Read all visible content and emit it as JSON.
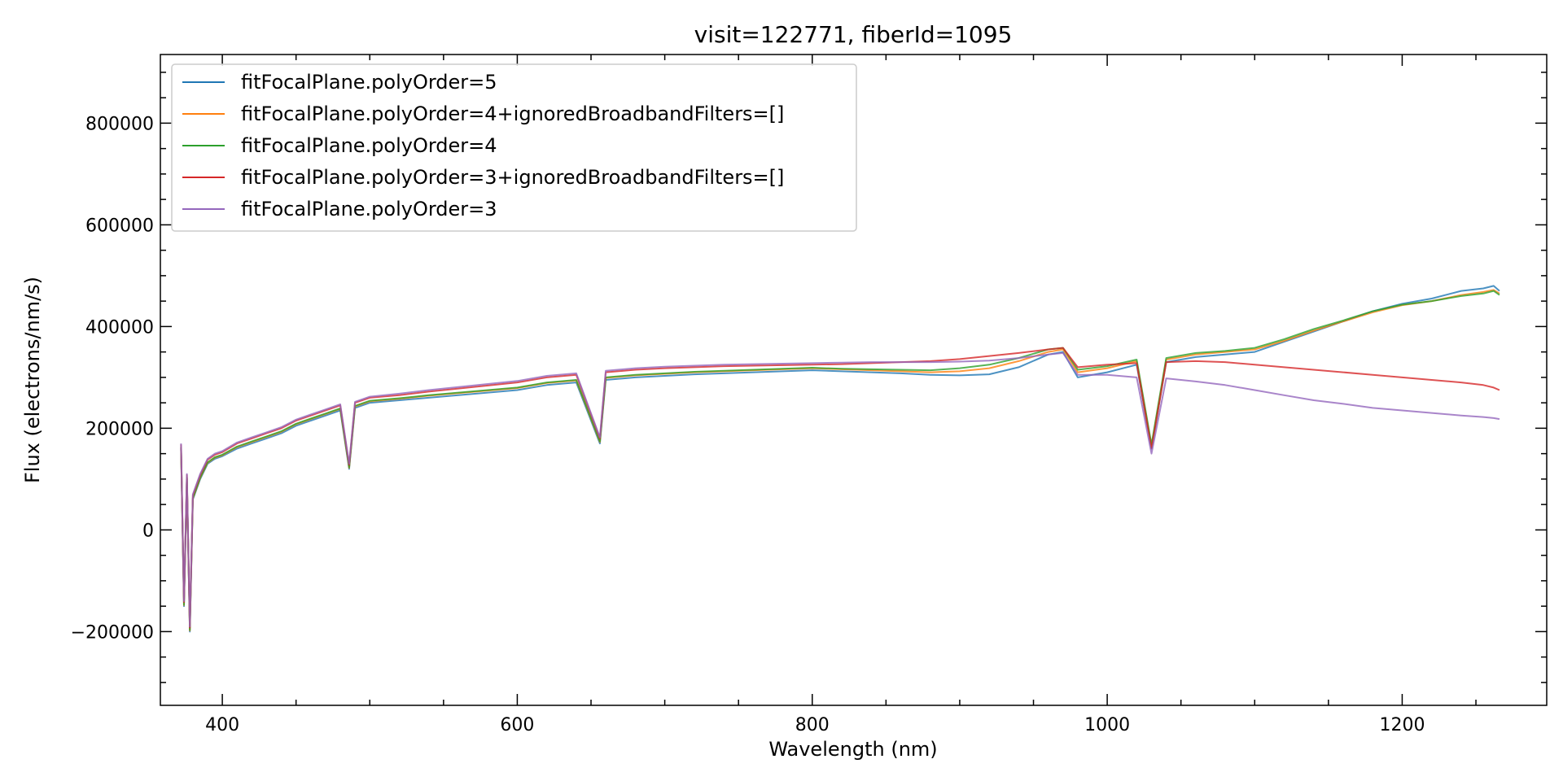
{
  "chart_data": {
    "type": "line",
    "title": "visit=122771, fiberId=1095",
    "xlabel": "Wavelength (nm)",
    "ylabel": "Flux (electrons/nm/s)",
    "xlim": [
      358,
      1298
    ],
    "ylim": [
      -345000,
      935000
    ],
    "xticks": [
      400,
      600,
      800,
      1000,
      1200
    ],
    "xtick_labels": [
      "400",
      "600",
      "800",
      "1000",
      "1200"
    ],
    "yticks": [
      -200000,
      0,
      200000,
      400000,
      600000,
      800000
    ],
    "ytick_labels": [
      "−200000",
      "0",
      "200000",
      "400000",
      "600000",
      "800000"
    ],
    "grid": false,
    "legend_position": "top-left",
    "series": [
      {
        "name": "fitFocalPlane.polyOrder=5",
        "color": "#1f77b4",
        "x": [
          372,
          374,
          376,
          378,
          380,
          385,
          390,
          395,
          400,
          410,
          420,
          430,
          440,
          450,
          460,
          470,
          480,
          486,
          490,
          500,
          520,
          540,
          560,
          580,
          600,
          620,
          640,
          656,
          660,
          680,
          700,
          720,
          740,
          760,
          780,
          800,
          820,
          840,
          860,
          880,
          900,
          920,
          940,
          960,
          970,
          980,
          1000,
          1020,
          1030,
          1040,
          1060,
          1080,
          1100,
          1120,
          1140,
          1160,
          1180,
          1200,
          1220,
          1240,
          1255,
          1262,
          1266
        ],
        "y": [
          160000,
          -150000,
          100000,
          -200000,
          60000,
          100000,
          130000,
          140000,
          145000,
          160000,
          170000,
          180000,
          190000,
          205000,
          215000,
          225000,
          235000,
          120000,
          240000,
          250000,
          255000,
          260000,
          265000,
          270000,
          275000,
          285000,
          290000,
          170000,
          295000,
          300000,
          303000,
          306000,
          308000,
          310000,
          312000,
          314000,
          312000,
          310000,
          308000,
          305000,
          304000,
          306000,
          320000,
          345000,
          350000,
          300000,
          310000,
          325000,
          160000,
          330000,
          340000,
          345000,
          350000,
          370000,
          390000,
          410000,
          430000,
          445000,
          455000,
          470000,
          475000,
          480000,
          470000
        ]
      },
      {
        "name": "fitFocalPlane.polyOrder=4+ignoredBroadbandFilters=[]",
        "color": "#ff7f0e",
        "x": [
          372,
          374,
          376,
          378,
          380,
          385,
          390,
          395,
          400,
          410,
          420,
          430,
          440,
          450,
          460,
          470,
          480,
          486,
          490,
          500,
          520,
          540,
          560,
          580,
          600,
          620,
          640,
          656,
          660,
          680,
          700,
          720,
          740,
          760,
          780,
          800,
          820,
          840,
          860,
          880,
          900,
          920,
          940,
          960,
          970,
          980,
          1000,
          1020,
          1030,
          1040,
          1060,
          1080,
          1100,
          1120,
          1140,
          1160,
          1180,
          1200,
          1220,
          1240,
          1255,
          1262,
          1266
        ],
        "y": [
          162000,
          -148000,
          102000,
          -198000,
          62000,
          102000,
          132000,
          142000,
          147000,
          163000,
          173000,
          183000,
          193000,
          208000,
          218000,
          228000,
          238000,
          122000,
          243000,
          253000,
          258000,
          264000,
          269000,
          274000,
          279000,
          289000,
          294000,
          173000,
          299000,
          304000,
          307000,
          310000,
          312000,
          314000,
          316000,
          318000,
          316000,
          314000,
          312000,
          310000,
          312000,
          318000,
          332000,
          350000,
          355000,
          310000,
          318000,
          332000,
          165000,
          335000,
          345000,
          350000,
          355000,
          372000,
          392000,
          410000,
          428000,
          442000,
          450000,
          462000,
          468000,
          472000,
          465000
        ]
      },
      {
        "name": "fitFocalPlane.polyOrder=4",
        "color": "#2ca02c",
        "x": [
          372,
          374,
          376,
          378,
          380,
          385,
          390,
          395,
          400,
          410,
          420,
          430,
          440,
          450,
          460,
          470,
          480,
          486,
          490,
          500,
          520,
          540,
          560,
          580,
          600,
          620,
          640,
          656,
          660,
          680,
          700,
          720,
          740,
          760,
          780,
          800,
          820,
          840,
          860,
          880,
          900,
          920,
          940,
          960,
          970,
          980,
          1000,
          1020,
          1030,
          1040,
          1060,
          1080,
          1100,
          1120,
          1140,
          1160,
          1180,
          1200,
          1220,
          1240,
          1255,
          1262,
          1266
        ],
        "y": [
          163000,
          -147000,
          103000,
          -197000,
          63000,
          103000,
          133000,
          143000,
          148000,
          164000,
          174000,
          184000,
          194000,
          209000,
          219000,
          229000,
          239000,
          123000,
          244000,
          254000,
          259000,
          265000,
          270000,
          275000,
          280000,
          290000,
          295000,
          174000,
          300000,
          305000,
          308000,
          311000,
          313000,
          315000,
          317000,
          319000,
          317000,
          316000,
          315000,
          314000,
          318000,
          325000,
          338000,
          355000,
          358000,
          315000,
          322000,
          335000,
          168000,
          338000,
          348000,
          352000,
          358000,
          375000,
          395000,
          412000,
          430000,
          443000,
          450000,
          460000,
          465000,
          470000,
          462000
        ]
      },
      {
        "name": "fitFocalPlane.polyOrder=3+ignoredBroadbandFilters=[]",
        "color": "#d62728",
        "x": [
          372,
          374,
          376,
          378,
          380,
          385,
          390,
          395,
          400,
          410,
          420,
          430,
          440,
          450,
          460,
          470,
          480,
          486,
          490,
          500,
          520,
          540,
          560,
          580,
          600,
          620,
          640,
          656,
          660,
          680,
          700,
          720,
          740,
          760,
          780,
          800,
          820,
          840,
          860,
          880,
          900,
          920,
          940,
          960,
          970,
          980,
          1000,
          1020,
          1030,
          1040,
          1060,
          1080,
          1100,
          1120,
          1140,
          1160,
          1180,
          1200,
          1220,
          1240,
          1255,
          1262,
          1266
        ],
        "y": [
          168000,
          -142000,
          108000,
          -192000,
          68000,
          108000,
          138000,
          148000,
          153000,
          170000,
          180000,
          190000,
          200000,
          215000,
          225000,
          235000,
          245000,
          128000,
          250000,
          260000,
          265000,
          272000,
          278000,
          284000,
          290000,
          300000,
          305000,
          180000,
          310000,
          315000,
          318000,
          320000,
          322000,
          323000,
          324000,
          325000,
          326000,
          328000,
          330000,
          332000,
          336000,
          342000,
          348000,
          355000,
          358000,
          320000,
          325000,
          328000,
          160000,
          330000,
          332000,
          330000,
          325000,
          320000,
          315000,
          310000,
          305000,
          300000,
          295000,
          290000,
          285000,
          280000,
          275000
        ]
      },
      {
        "name": "fitFocalPlane.polyOrder=3",
        "color": "#9467bd",
        "x": [
          372,
          374,
          376,
          378,
          380,
          385,
          390,
          395,
          400,
          410,
          420,
          430,
          440,
          450,
          460,
          470,
          480,
          486,
          490,
          500,
          520,
          540,
          560,
          580,
          600,
          620,
          640,
          656,
          660,
          680,
          700,
          720,
          740,
          760,
          780,
          800,
          820,
          840,
          860,
          880,
          900,
          920,
          940,
          960,
          970,
          980,
          1000,
          1020,
          1030,
          1040,
          1060,
          1080,
          1100,
          1120,
          1140,
          1160,
          1180,
          1200,
          1220,
          1240,
          1255,
          1262,
          1266
        ],
        "y": [
          170000,
          -140000,
          110000,
          -190000,
          70000,
          110000,
          140000,
          150000,
          155000,
          172000,
          182000,
          192000,
          202000,
          217000,
          227000,
          237000,
          247000,
          130000,
          252000,
          262000,
          268000,
          275000,
          281000,
          287000,
          293000,
          303000,
          308000,
          182000,
          313000,
          318000,
          321000,
          323000,
          325000,
          326000,
          327000,
          328000,
          329000,
          330000,
          330000,
          330000,
          331000,
          333000,
          338000,
          345000,
          348000,
          305000,
          305000,
          300000,
          150000,
          298000,
          292000,
          285000,
          275000,
          265000,
          255000,
          248000,
          240000,
          235000,
          230000,
          225000,
          222000,
          220000,
          218000
        ]
      }
    ]
  }
}
